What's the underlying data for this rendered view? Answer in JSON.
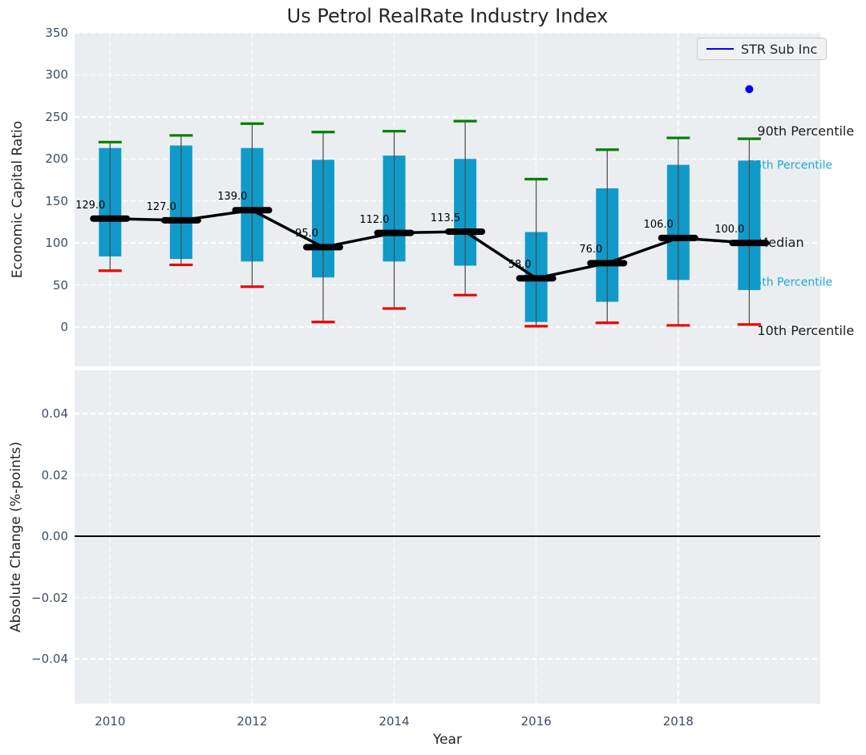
{
  "title": "Us Petrol RealRate Industry Index",
  "legend": {
    "label": "STR Sub Inc"
  },
  "axes": {
    "x": {
      "label": "Year",
      "tick_labels": [
        "2010",
        "2012",
        "2014",
        "2016",
        "2018"
      ],
      "tick_values": [
        2010,
        2012,
        2014,
        2016,
        2018
      ],
      "xlim": [
        2009.5,
        2020
      ]
    },
    "top": {
      "ylabel": "Economic Capital Ratio",
      "tick_labels": [
        "0",
        "50",
        "100",
        "150",
        "200",
        "250",
        "300",
        "350"
      ],
      "tick_values": [
        0,
        50,
        100,
        150,
        200,
        250,
        300,
        350
      ],
      "ylim": [
        -47,
        350
      ]
    },
    "bottom": {
      "ylabel": "Absolute Change (%-points)",
      "tick_labels": [
        "0.04",
        "0.02",
        "0.00",
        "−0.02",
        "−0.04"
      ],
      "tick_values": [
        0.04,
        0.02,
        0,
        -0.02,
        -0.04
      ],
      "ylim": [
        -0.054,
        0.054
      ]
    }
  },
  "chart_data": {
    "type": "boxplot+line",
    "title": "Us Petrol RealRate Industry Index",
    "xlabel": "Year",
    "ylabel_top": "Economic Capital Ratio",
    "ylabel_bottom": "Absolute Change (%-points)",
    "categories": [
      2010,
      2011,
      2012,
      2013,
      2014,
      2015,
      2016,
      2017,
      2018,
      2019
    ],
    "series": [
      {
        "name": "90th Percentile",
        "values": [
          220,
          228,
          242,
          232,
          233,
          245,
          176,
          211,
          225,
          224
        ]
      },
      {
        "name": "75th Percentile",
        "values": [
          213,
          216,
          213,
          199,
          204,
          200,
          113,
          165,
          193,
          198
        ]
      },
      {
        "name": "Median",
        "values": [
          129,
          127,
          139,
          95,
          112,
          113.5,
          58,
          76,
          106,
          100
        ]
      },
      {
        "name": "25th Percentile",
        "values": [
          84,
          81,
          78,
          59,
          78,
          73,
          6,
          30,
          56,
          44
        ]
      },
      {
        "name": "10th Percentile",
        "values": [
          67,
          74,
          48,
          6,
          22,
          38,
          1,
          5,
          2,
          3
        ]
      }
    ],
    "median_point_labels": [
      "129.0",
      "127.0",
      "139.0",
      "95.0",
      "112.0",
      "113.5",
      "58.0",
      "76.0",
      "106.0",
      "100.0"
    ],
    "scatter": {
      "name": "STR Sub Inc",
      "year": 2019,
      "value": 283
    },
    "annotations": [
      {
        "text": "90th Percentile",
        "anchor_value": 233,
        "style": "black"
      },
      {
        "text": "75th Percentile",
        "anchor_value": 192,
        "style": "cyan"
      },
      {
        "text": "Median",
        "anchor_value": 100,
        "style": "black"
      },
      {
        "text": "25th Percentile",
        "anchor_value": 52.5,
        "style": "cyan"
      },
      {
        "text": "10th Percentile",
        "anchor_value": -5,
        "style": "black"
      }
    ],
    "bottom_panel": {
      "zero_line_value": 0.0,
      "has_data": false
    },
    "legend_entries": [
      "STR Sub Inc"
    ],
    "grid": "white-dashed",
    "legend_position": "upper-right"
  },
  "colors": {
    "box_fill": "#109aca",
    "cap_high": "#008000",
    "cap_low": "#ee0000",
    "whisker": "#4a4a4a",
    "median_line": "#000000",
    "scatter_point": "#0000ff",
    "legend_line": "#0000ff",
    "annotation_black": "#1a1a1a",
    "annotation_cyan": "#1fa7d9",
    "plot_bg": "#ebeef1",
    "grid": "#ffffff",
    "tick_text": "#3d4e63",
    "title_text": "#262626",
    "zero_line": "#000000"
  }
}
